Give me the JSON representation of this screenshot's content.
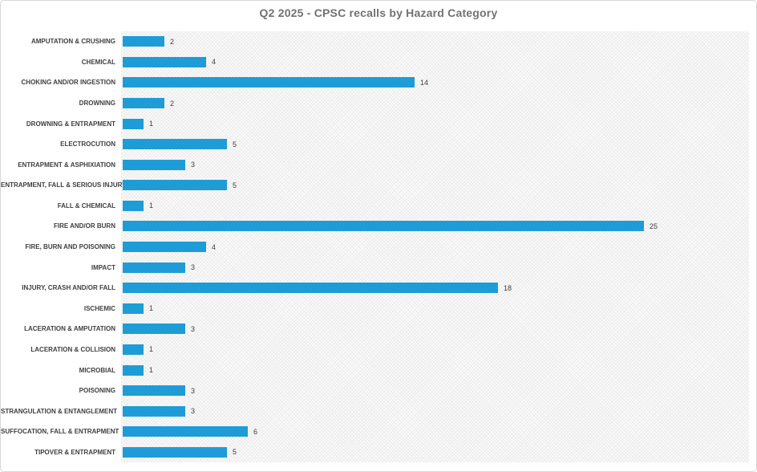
{
  "chart_data": {
    "type": "bar",
    "orientation": "horizontal",
    "title": "Q2 2025 - CPSC recalls by Hazard Category",
    "categories": [
      "AMPUTATION & CRUSHING",
      "CHEMICAL",
      "CHOKING AND/OR INGESTION",
      "DROWNING",
      "DROWNING & ENTRAPMENT",
      "ELECTROCUTION",
      "ENTRAPMENT & ASPHIXIATION",
      "ENTRAPMENT, FALL & SERIOUS INJURY",
      "FALL & CHEMICAL",
      "FIRE AND/OR BURN",
      "FIRE, BURN AND POISONING",
      "IMPACT",
      "INJURY, CRASH AND/OR FALL",
      "ISCHEMIC",
      "LACERATION & AMPUTATION",
      "LACERATION & COLLISION",
      "MICROBIAL",
      "POISONING",
      "STRANGULATION & ENTANGLEMENT",
      "SUFFOCATION, FALL & ENTRAPMENT",
      "TIPOVER & ENTRAPMENT"
    ],
    "values": [
      2,
      4,
      14,
      2,
      1,
      5,
      3,
      5,
      1,
      25,
      4,
      3,
      18,
      1,
      3,
      1,
      1,
      3,
      3,
      6,
      5
    ],
    "xlim": [
      0,
      30
    ],
    "data_labels": true,
    "legend": "none",
    "grid": "off",
    "colors": {
      "bar": "#1e9cd7",
      "title": "#757070",
      "category_label": "#3f3f3f",
      "value_label": "#404040",
      "plot_hatch": "#ececec",
      "frame_border": "#d6d6d6"
    }
  }
}
